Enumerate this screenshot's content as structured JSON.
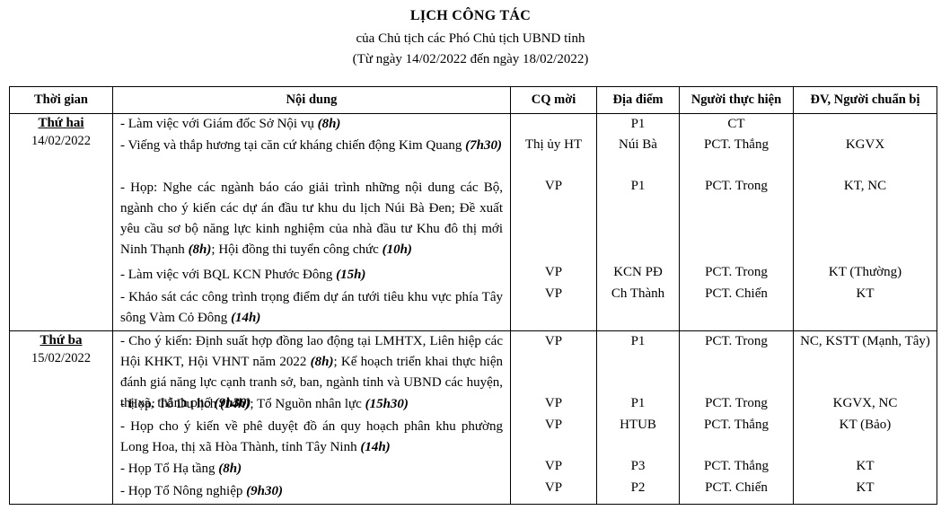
{
  "header": {
    "title": "LỊCH  CÔNG TÁC",
    "subtitle": "của Chủ tịch các Phó Chủ tịch UBND tỉnh",
    "date_range": "(Từ ngày 14/02/2022 đến ngày 18/02/2022)"
  },
  "columns": {
    "time": "Thời gian",
    "content": "Nội dung",
    "inviter": "CQ mời",
    "location": "Địa điểm",
    "performer": "Người thực hiện",
    "preparer": "ĐV, Người chuẩn bị"
  },
  "days": [
    {
      "name": "Thứ hai",
      "date": "14/02/2022",
      "items": [
        {
          "parts": [
            {
              "text": "- Làm việc với Giám đốc Sở Nội vụ "
            },
            {
              "text": "(8h)",
              "bold": true
            }
          ],
          "inviter": "",
          "location": "P1",
          "performer": "CT",
          "preparer": ""
        },
        {
          "parts": [
            {
              "text": "- Viếng và thắp hương tại căn cứ kháng chiến động Kim Quang "
            },
            {
              "text": "(7h30)",
              "bold": true
            }
          ],
          "inviter": "Thị ủy HT",
          "location": "Núi Bà",
          "performer": "PCT. Thắng",
          "preparer": "KGVX"
        },
        {
          "parts": [
            {
              "text": "- Họp: Nghe các ngành báo cáo giải trình những nội dung các Bộ, ngành cho ý kiến các dự án đầu tư khu du lịch Núi Bà Đen; Đề xuất yêu cầu sơ bộ năng lực kinh nghiệm của nhà đầu tư Khu đô thị mới Ninh Thạnh "
            },
            {
              "text": "(8h)",
              "bold": true
            },
            {
              "text": "; Hội đồng thi tuyển công chức "
            },
            {
              "text": "(10h)",
              "bold": true
            }
          ],
          "inviter": "VP",
          "location": "P1",
          "performer": "PCT. Trong",
          "preparer": "KT, NC"
        },
        {
          "parts": [
            {
              "text": "- Làm việc với BQL KCN Phước Đông "
            },
            {
              "text": "(15h)",
              "bold": true
            }
          ],
          "inviter": "VP",
          "location": "KCN PĐ",
          "performer": "PCT. Trong",
          "preparer": "KT (Thường)"
        },
        {
          "parts": [
            {
              "text": "- Khảo sát các công trình trọng điểm dự án tưới tiêu khu vực phía Tây sông Vàm Cỏ Đông "
            },
            {
              "text": "(14h)",
              "bold": true
            }
          ],
          "inviter": "VP",
          "location": "Ch Thành",
          "performer": "PCT. Chiến",
          "preparer": "KT"
        }
      ]
    },
    {
      "name": "Thứ ba",
      "date": "15/02/2022",
      "items": [
        {
          "parts": [
            {
              "text": "- Cho ý kiến: Định suất hợp đồng lao động tại LMHTX, Liên hiệp các Hội KHKT, Hội VHNT năm 2022 "
            },
            {
              "text": "(8h)",
              "bold": true
            },
            {
              "text": "; Kế hoạch triển khai thực hiện đánh giá năng lực cạnh tranh sở, ban, ngành tỉnh và UBND các huyện, thị xã, thành phố "
            },
            {
              "text": "(9h30)",
              "bold": true
            }
          ],
          "inviter": "VP",
          "location": "P1",
          "performer": "PCT. Trong",
          "preparer": "NC, KSTT (Mạnh, Tây)"
        },
        {
          "parts": [
            {
              "text": "- Họp: Tổ Du lịch "
            },
            {
              "text": "(14h)",
              "bold": true
            },
            {
              "text": "; Tổ Nguồn nhân lực "
            },
            {
              "text": "(15h30)",
              "bold": true
            }
          ],
          "inviter": "VP",
          "location": "P1",
          "performer": "PCT. Trong",
          "preparer": "KGVX, NC"
        },
        {
          "parts": [
            {
              "text": "- Họp cho ý kiến về phê duyệt đồ án quy hoạch phân khu phường Long Hoa, thị xã Hòa Thành, tỉnh Tây Ninh "
            },
            {
              "text": "(14h)",
              "bold": true
            }
          ],
          "inviter": "VP",
          "location": "HTUB",
          "performer": "PCT. Thắng",
          "preparer": "KT (Bảo)"
        },
        {
          "parts": [
            {
              "text": "- Họp Tổ Hạ tầng "
            },
            {
              "text": "(8h)",
              "bold": true
            }
          ],
          "inviter": "VP",
          "location": "P3",
          "performer": "PCT. Thắng",
          "preparer": "KT"
        },
        {
          "parts": [
            {
              "text": "- Họp Tổ Nông nghiệp "
            },
            {
              "text": "(9h30)",
              "bold": true
            }
          ],
          "inviter": "VP",
          "location": "P2",
          "performer": "PCT. Chiến",
          "preparer": "KT"
        }
      ]
    }
  ]
}
